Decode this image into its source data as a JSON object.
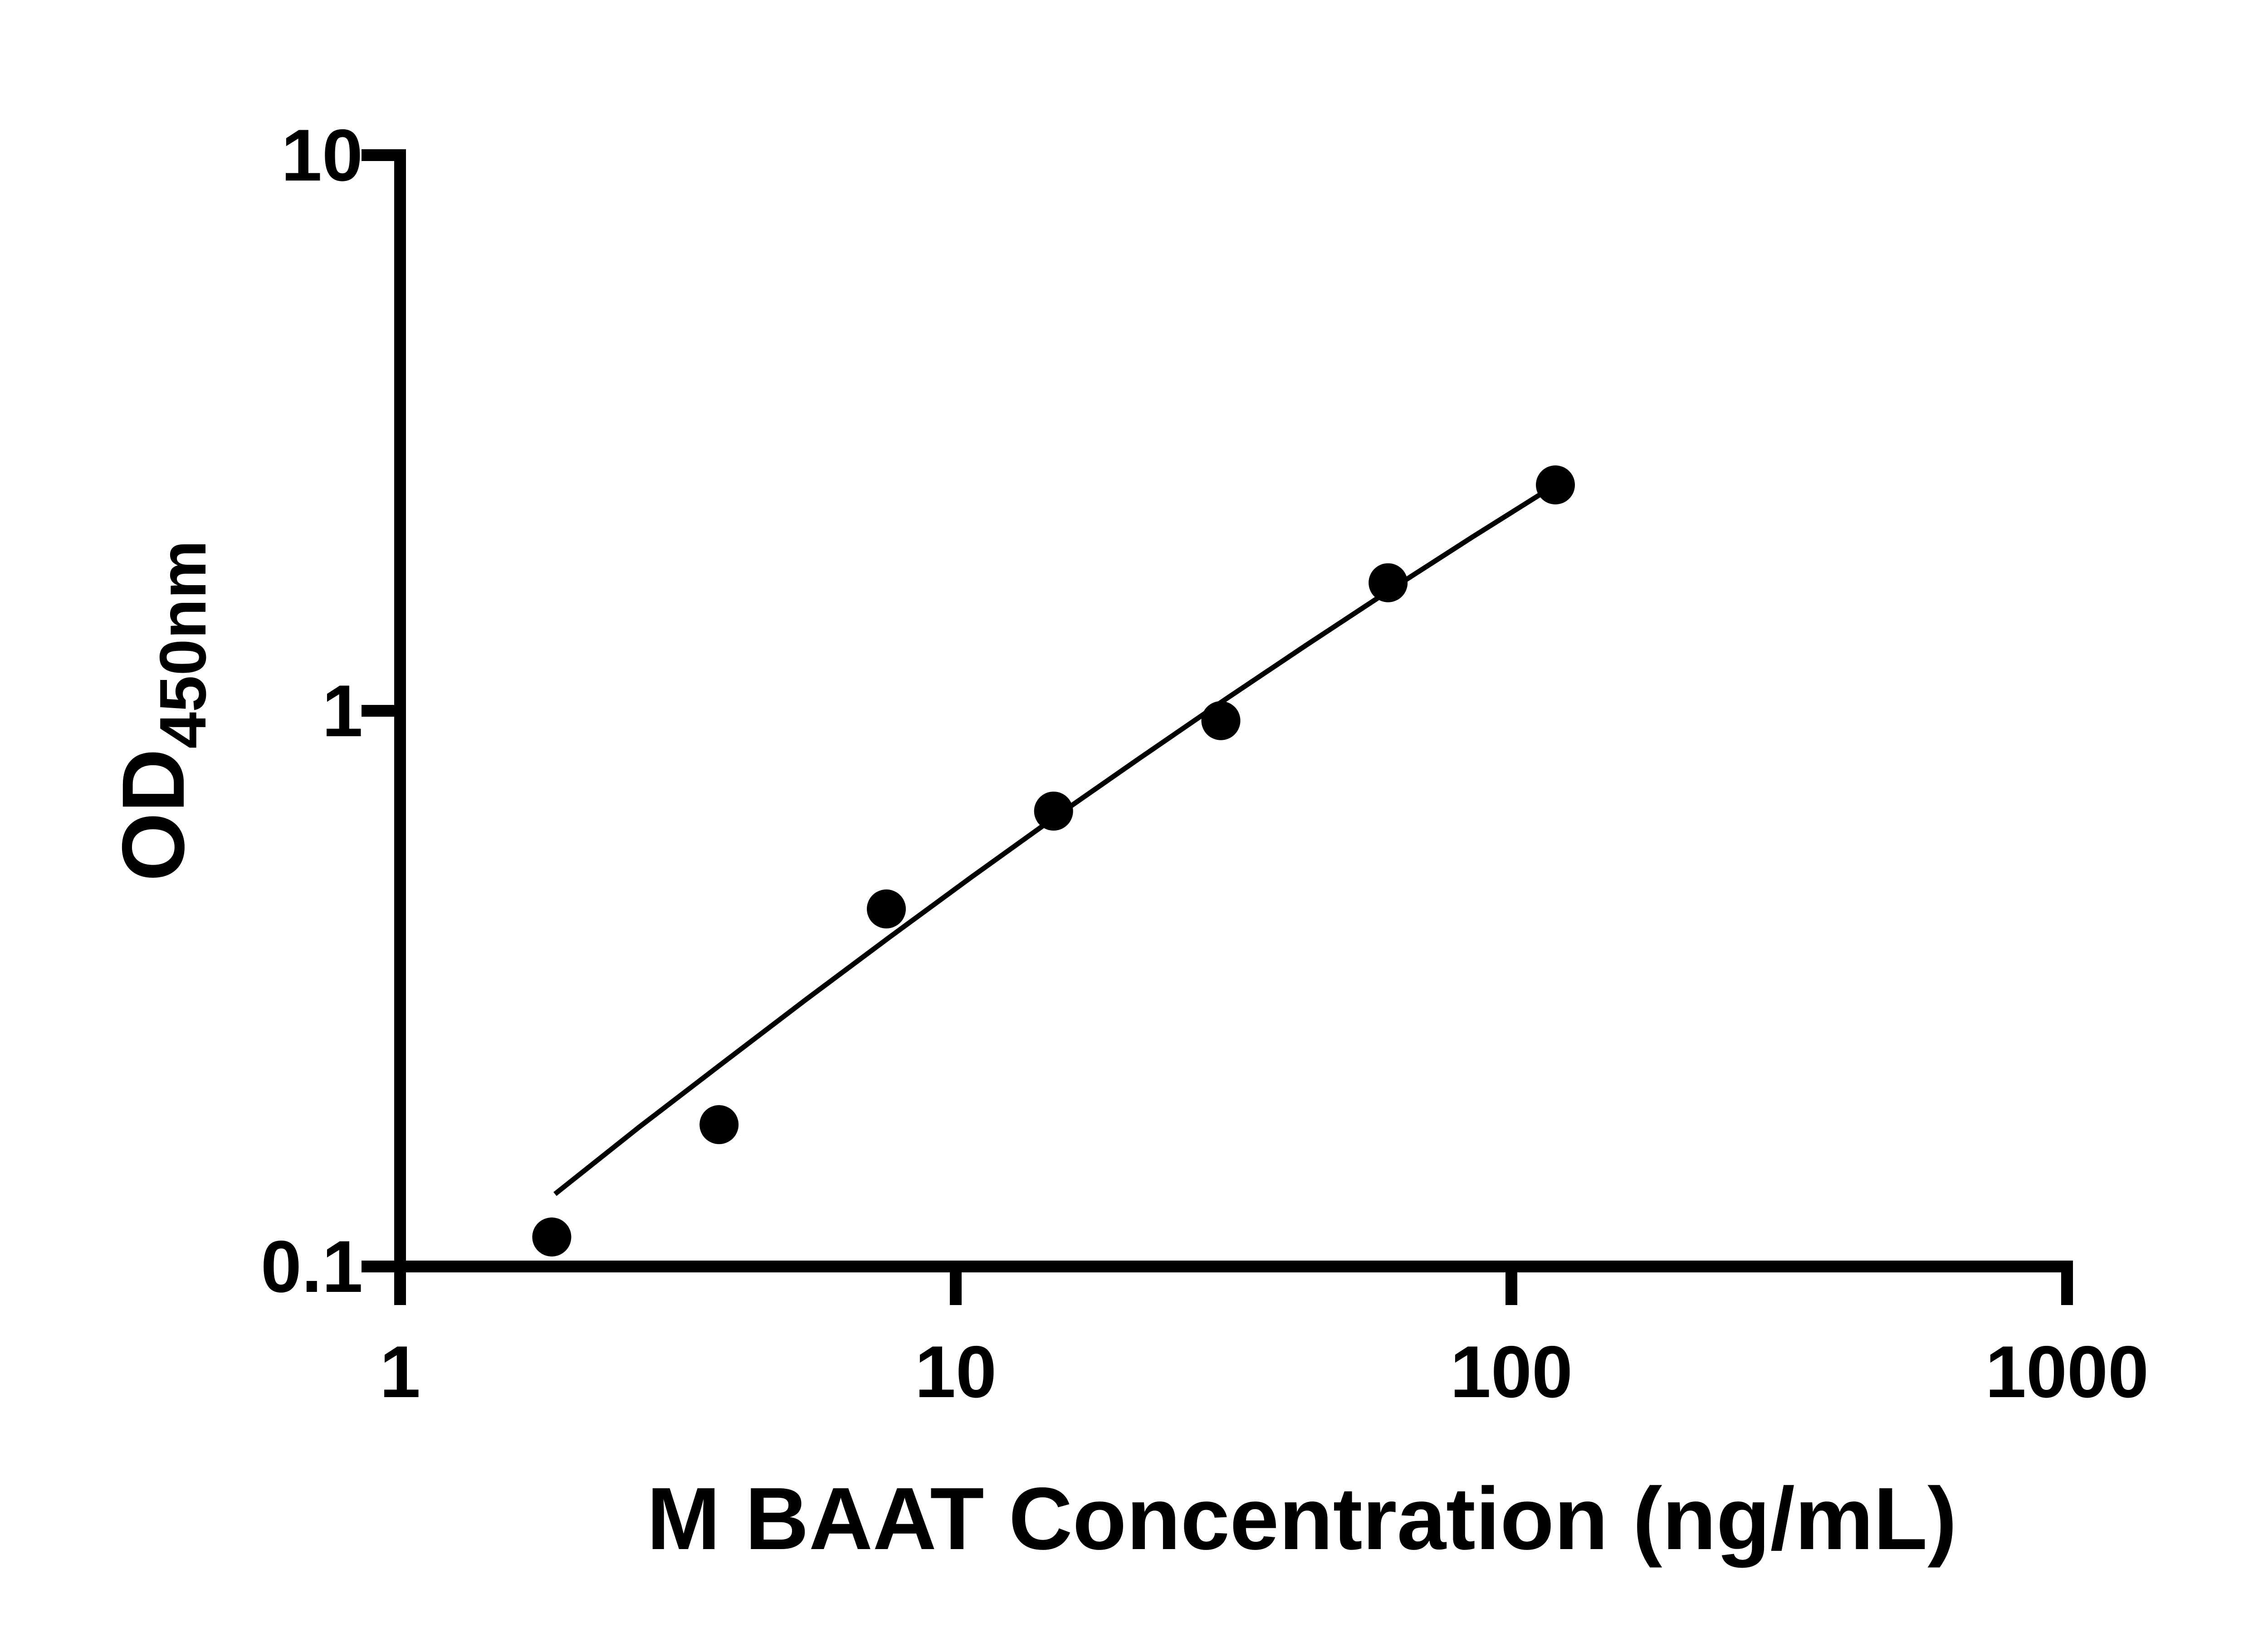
{
  "page": {
    "background": "#ffffff"
  },
  "chart_data": {
    "type": "scatter",
    "title": "",
    "xlabel": "M BAAT Concentration (ng/mL)",
    "ylabel": "OD450nm",
    "ylabel_main": "OD",
    "ylabel_sub": "450nm",
    "x_scale": "log10",
    "y_scale": "log10",
    "xlim": [
      1,
      1000
    ],
    "ylim": [
      0.1,
      10
    ],
    "grid": "off",
    "legend": "none",
    "x_ticks": [
      {
        "value": 1,
        "label": "1"
      },
      {
        "value": 10,
        "label": "10"
      },
      {
        "value": 100,
        "label": "100"
      },
      {
        "value": 1000,
        "label": "1000"
      }
    ],
    "y_ticks": [
      {
        "value": 0.1,
        "label": "0.1"
      },
      {
        "value": 1,
        "label": "1"
      },
      {
        "value": 10,
        "label": "10"
      }
    ],
    "series": [
      {
        "name": "standard-points",
        "type": "scatter",
        "marker": "circle",
        "color": "#000000",
        "points": [
          {
            "x": 1.875,
            "y": 0.113
          },
          {
            "x": 3.75,
            "y": 0.18
          },
          {
            "x": 7.5,
            "y": 0.44
          },
          {
            "x": 15,
            "y": 0.66
          },
          {
            "x": 30,
            "y": 0.96
          },
          {
            "x": 60,
            "y": 1.7
          },
          {
            "x": 120,
            "y": 2.55
          }
        ]
      },
      {
        "name": "fit-line",
        "type": "line",
        "color": "#000000",
        "points": [
          {
            "x": 1.9,
            "y": 0.135
          },
          {
            "x": 2.69,
            "y": 0.178
          },
          {
            "x": 3.8,
            "y": 0.232
          },
          {
            "x": 5.37,
            "y": 0.302
          },
          {
            "x": 7.59,
            "y": 0.391
          },
          {
            "x": 10.7,
            "y": 0.503
          },
          {
            "x": 15.1,
            "y": 0.644
          },
          {
            "x": 21.4,
            "y": 0.821
          },
          {
            "x": 30.2,
            "y": 1.04
          },
          {
            "x": 42.7,
            "y": 1.312
          },
          {
            "x": 60.3,
            "y": 1.647
          },
          {
            "x": 85.1,
            "y": 2.055
          },
          {
            "x": 120,
            "y": 2.55
          }
        ]
      }
    ],
    "colors": {
      "marker": "#000000",
      "line": "#000000",
      "axis": "#000000",
      "text": "#000000",
      "background": "#ffffff"
    }
  }
}
